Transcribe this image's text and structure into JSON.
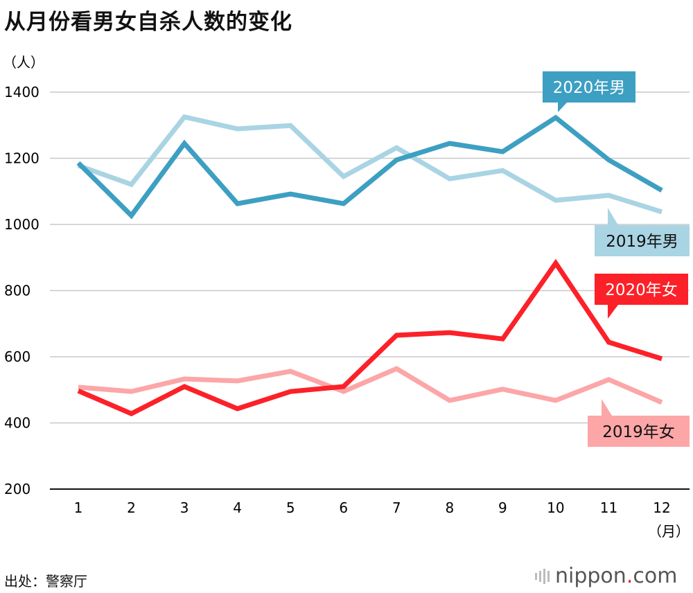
{
  "title": "从月份看男女自杀人数的变化",
  "source": "出处：警察厅",
  "logo": {
    "name": "nippon",
    "dot": ".",
    "suffix": "com"
  },
  "chart_data": {
    "type": "line",
    "title": "从月份看男女自杀人数的变化",
    "ylabel": "（人）",
    "xlabel": "（月）",
    "ylim": [
      200,
      1400
    ],
    "yticks": [
      200,
      400,
      600,
      800,
      1000,
      1200,
      1400
    ],
    "categories": [
      "1",
      "2",
      "3",
      "4",
      "5",
      "6",
      "7",
      "8",
      "9",
      "10",
      "11",
      "12"
    ],
    "grid": true,
    "series": [
      {
        "name": "2019年男",
        "color": "#a9d4e3",
        "label_text_color": "#111111",
        "label_pos": "below-right",
        "values": [
          1178,
          1121,
          1325,
          1289,
          1299,
          1145,
          1232,
          1138,
          1163,
          1073,
          1088,
          1038
        ]
      },
      {
        "name": "2020年男",
        "color": "#3d9fc2",
        "label_text_color": "#ffffff",
        "label_pos": "above-right",
        "values": [
          1186,
          1027,
          1245,
          1063,
          1092,
          1063,
          1195,
          1245,
          1220,
          1323,
          1195,
          1103
        ]
      },
      {
        "name": "2019年女",
        "color": "#fca6a8",
        "label_text_color": "#111111",
        "label_pos": "below-right",
        "values": [
          508,
          495,
          533,
          527,
          556,
          495,
          564,
          468,
          502,
          468,
          531,
          462
        ]
      },
      {
        "name": "2020年女",
        "color": "#fc2129",
        "label_text_color": "#ffffff",
        "label_pos": "above-right",
        "values": [
          497,
          428,
          510,
          443,
          495,
          510,
          665,
          673,
          654,
          883,
          644,
          594
        ]
      }
    ]
  }
}
